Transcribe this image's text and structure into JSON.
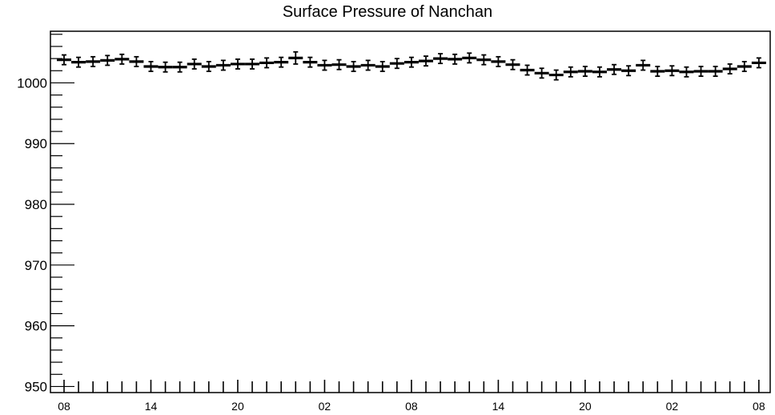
{
  "chart_data": {
    "type": "scatter",
    "title": "Surface Pressure of Nanchan",
    "xlabel": "",
    "ylabel": "",
    "ylim": [
      949,
      1008.5
    ],
    "yticks": [
      950,
      960,
      970,
      980,
      990,
      1000
    ],
    "ytick_labels": [
      "950",
      "960",
      "970",
      "980",
      "990",
      "1000"
    ],
    "xtick_labels": [
      "08",
      "14",
      "20",
      "02",
      "08",
      "14",
      "20",
      "02",
      "08"
    ],
    "x": [
      0,
      1,
      2,
      3,
      4,
      5,
      6,
      7,
      8,
      9,
      10,
      11,
      12,
      13,
      14,
      15,
      16,
      17,
      18,
      19,
      20,
      21,
      22,
      23,
      24,
      25,
      26,
      27,
      28,
      29,
      30,
      31,
      32,
      33,
      34,
      35,
      36,
      37,
      38,
      39,
      40,
      41,
      42,
      43,
      44,
      45,
      46,
      47,
      48
    ],
    "values": [
      1003.8,
      1003.4,
      1003.5,
      1003.7,
      1003.9,
      1003.5,
      1002.7,
      1002.6,
      1002.6,
      1003.1,
      1002.7,
      1002.9,
      1003.1,
      1003.1,
      1003.3,
      1003.4,
      1004.1,
      1003.4,
      1002.9,
      1003.0,
      1002.7,
      1002.9,
      1002.7,
      1003.2,
      1003.4,
      1003.6,
      1004.0,
      1003.9,
      1004.1,
      1003.8,
      1003.5,
      1003.0,
      1002.1,
      1001.6,
      1001.3,
      1001.8,
      1001.9,
      1001.8,
      1002.2,
      1002.0,
      1002.9,
      1001.9,
      1002.0,
      1001.8,
      1001.9,
      1001.9,
      1002.3,
      1002.7,
      1003.3
    ],
    "error": [
      0.8,
      0.8,
      0.8,
      0.8,
      0.8,
      0.8,
      0.8,
      0.8,
      0.8,
      0.8,
      0.8,
      0.8,
      0.8,
      0.8,
      0.8,
      0.8,
      1.0,
      0.8,
      0.8,
      0.8,
      0.8,
      0.8,
      0.8,
      0.8,
      0.8,
      0.8,
      0.8,
      0.8,
      0.8,
      0.8,
      0.8,
      0.8,
      0.8,
      0.8,
      0.8,
      0.8,
      0.8,
      0.8,
      0.8,
      0.8,
      0.8,
      0.8,
      0.8,
      0.8,
      0.8,
      0.8,
      0.8,
      0.8,
      0.8
    ],
    "grid": false,
    "legend": "none"
  }
}
